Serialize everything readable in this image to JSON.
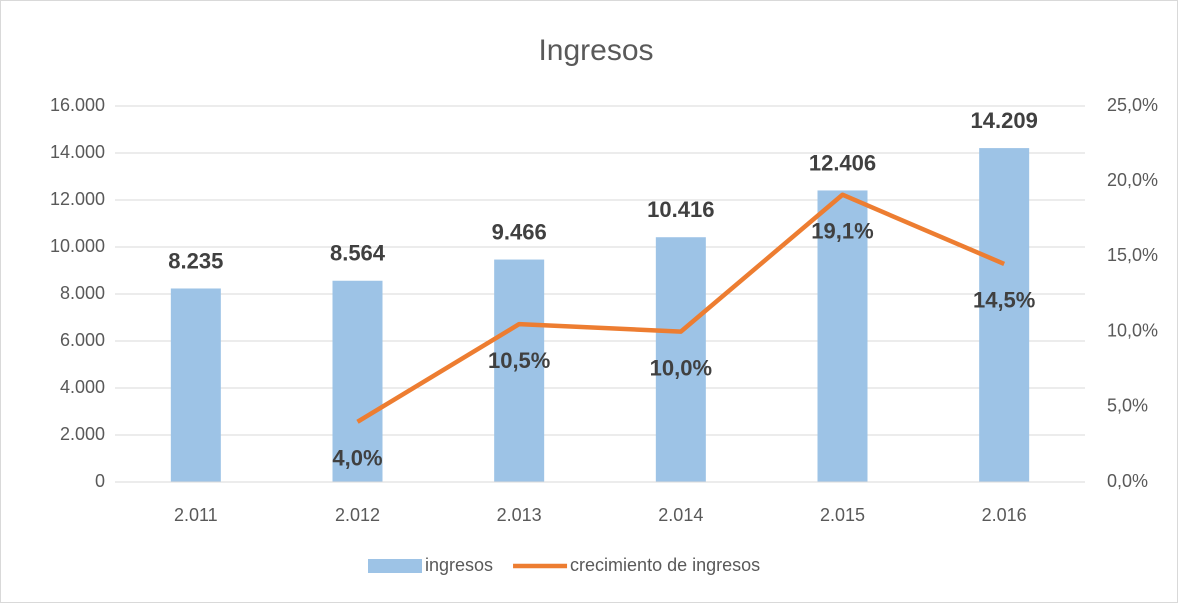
{
  "chart_data": {
    "type": "bar",
    "title": "Ingresos",
    "categories": [
      "2.011",
      "2.012",
      "2.013",
      "2.014",
      "2.015",
      "2.016"
    ],
    "series": [
      {
        "name": "ingresos",
        "type": "bar",
        "color": "#9dc3e6",
        "values": [
          8235,
          8564,
          9466,
          10416,
          12406,
          14209
        ],
        "value_labels": [
          "8.235",
          "8.564",
          "9.466",
          "10.416",
          "12.406",
          "14.209"
        ]
      },
      {
        "name": "crecimiento de ingresos",
        "type": "line",
        "axis": "y2",
        "color": "#ed7d31",
        "values": [
          null,
          4.0,
          10.5,
          10.0,
          19.1,
          14.5
        ],
        "value_labels": [
          null,
          "4,0%",
          "10,5%",
          "10,0%",
          "19,1%",
          "14,5%"
        ]
      }
    ],
    "ylim": [
      0,
      16000
    ],
    "yticks": [
      0,
      {
        "value": 2000,
        "label": "2.000"
      },
      {
        "value": 4000,
        "label": "4.000"
      },
      {
        "value": 6000,
        "label": "6.000"
      },
      {
        "value": 8000,
        "label": "8.000"
      },
      {
        "value": 10000,
        "label": "10.000"
      },
      {
        "value": 12000,
        "label": "12.000"
      },
      {
        "value": 14000,
        "label": "14.000"
      },
      {
        "value": 16000,
        "label": "16.000"
      }
    ],
    "y2lim": [
      0,
      25
    ],
    "y2ticks": [
      {
        "value": 0,
        "label": "0,0%"
      },
      {
        "value": 5,
        "label": "5,0%"
      },
      {
        "value": 10,
        "label": "10,0%"
      },
      {
        "value": 15,
        "label": "15,0%"
      },
      {
        "value": 20,
        "label": "20,0%"
      },
      {
        "value": 25,
        "label": "25,0%"
      }
    ],
    "grid": true,
    "legend": "bottom"
  }
}
